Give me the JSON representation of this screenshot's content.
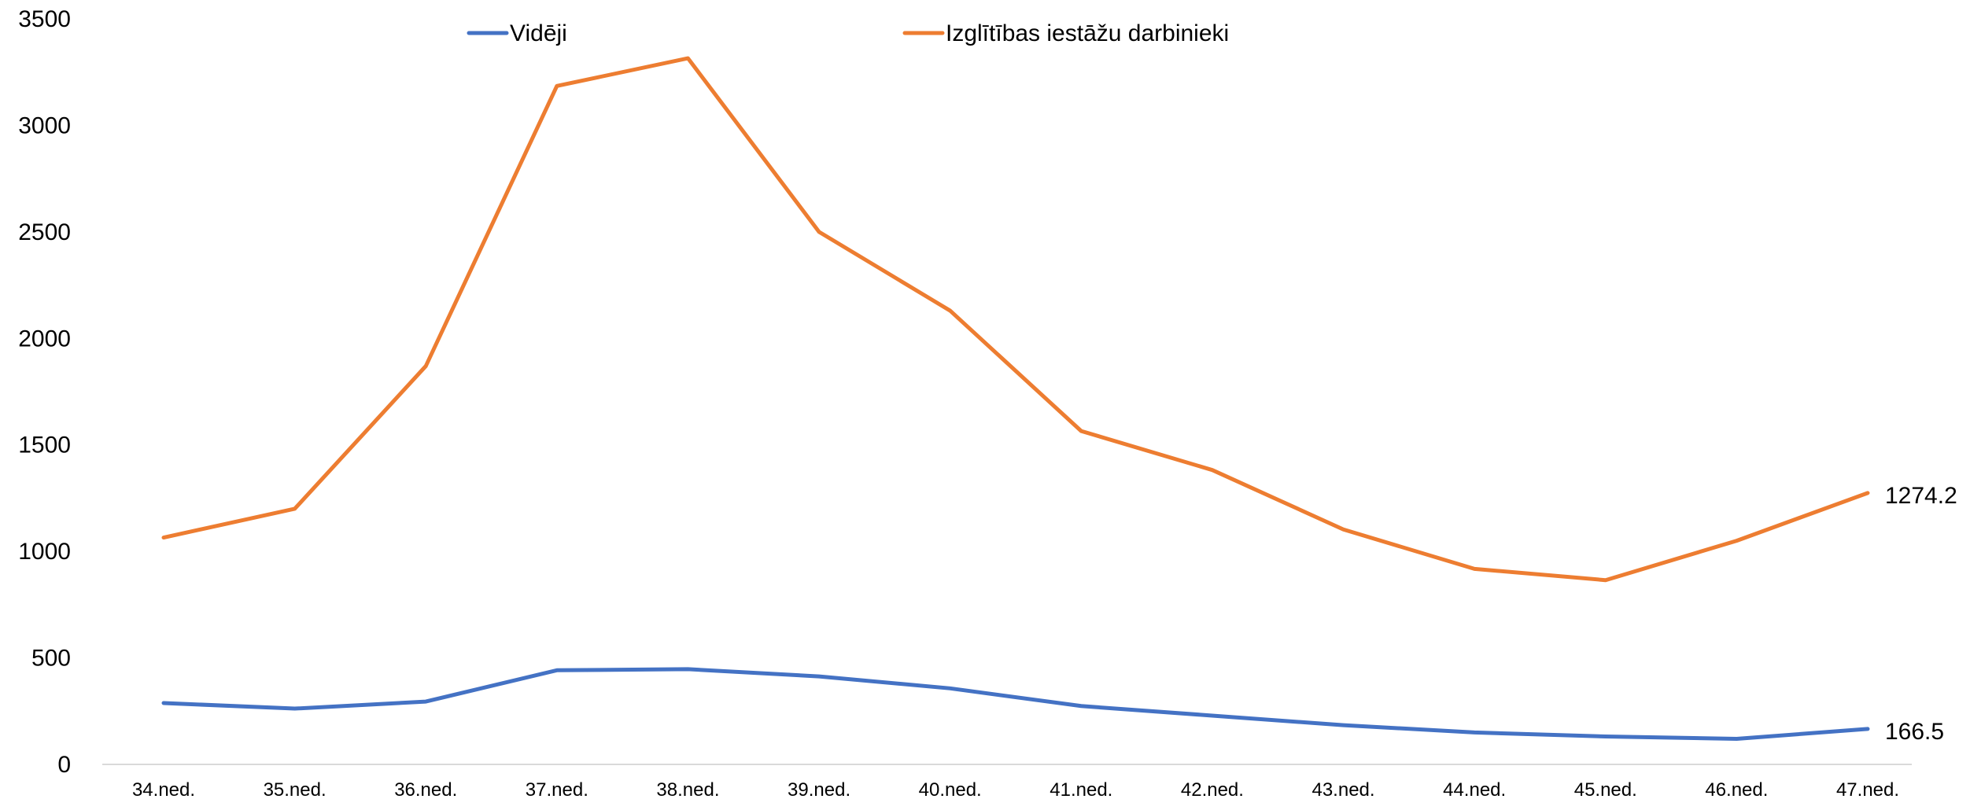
{
  "chart_data": {
    "type": "line",
    "title": "",
    "xlabel": "",
    "ylabel": "",
    "categories": [
      "34.ned.",
      "35.ned.",
      "36.ned.",
      "37.ned.",
      "38.ned.",
      "39.ned.",
      "40.ned.",
      "41.ned.",
      "42.ned.",
      "43.ned.",
      "44.ned.",
      "45.ned.",
      "46.ned.",
      "47.ned."
    ],
    "ylim": [
      0,
      3500
    ],
    "yticks": [
      "0",
      "500",
      "1000",
      "1500",
      "2000",
      "2500",
      "3000",
      "3500"
    ],
    "grid": false,
    "legend_position": "top",
    "series": [
      {
        "name": "Vidēji",
        "color": "#4472C4",
        "values": [
          288,
          262,
          295,
          442,
          447,
          413,
          357,
          274,
          229,
          184,
          150,
          131,
          120,
          166.5
        ],
        "end_label": "166.5"
      },
      {
        "name": "Izglītības iestāžu darbinieki",
        "color": "#ED7D31",
        "values": [
          1065,
          1200,
          1870,
          3185,
          3315,
          2500,
          2130,
          1565,
          1382,
          1103,
          918,
          865,
          1050,
          1274.2
        ],
        "end_label": "1274.2"
      }
    ]
  }
}
